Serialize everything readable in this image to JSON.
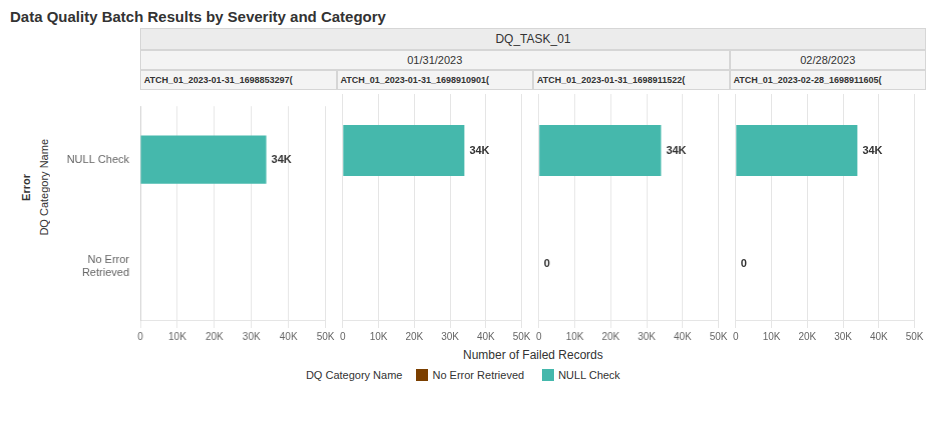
{
  "title": "Data Quality Batch Results by Severity and Category",
  "subtitle": "DQ_TASK_01",
  "annotations": [
    "Error"
  ],
  "ylabel": "DQ Category Name",
  "xlabel": "Number of Failed Records",
  "legend": "bottom",
  "chart_data": [
    {
      "type": "bar",
      "orientation": "horizontal",
      "title": "ATCH_01_2023-01-31_1698853297(",
      "subtitle": "01/31/2023",
      "categories": [
        "NULL Check",
        "No Error\nRetrieved"
      ],
      "series": [
        {
          "name": "No Error Retrieved",
          "color": "#7B3F00",
          "values": [
            null,
            null
          ]
        },
        {
          "name": "NULL Check",
          "color": "#45b8ac",
          "values": [
            34000,
            null
          ],
          "value_labels": [
            "34K",
            null
          ]
        }
      ],
      "xlim": [
        0,
        50000
      ],
      "xticks": [
        0,
        {
          "value": 10000,
          "label": "10K"
        },
        {
          "value": 20000,
          "label": "20K"
        },
        {
          "value": 30000,
          "label": "30K"
        },
        {
          "value": 40000,
          "label": "40K"
        },
        {
          "value": 50000,
          "label": "50K"
        }
      ],
      "grid": true,
      "data_labels": true
    },
    {
      "type": "bar",
      "orientation": "horizontal",
      "title": "ATCH_01_2023-01-31_1698910901(",
      "subtitle": "01/31/2023",
      "categories": [
        "NULL Check",
        "No Error\nRetrieved"
      ],
      "series": [
        {
          "name": "No Error Retrieved",
          "color": "#7B3F00",
          "values": [
            null,
            null
          ]
        },
        {
          "name": "NULL Check",
          "color": "#45b8ac",
          "values": [
            34000,
            null
          ],
          "value_labels": [
            "34K",
            null
          ]
        }
      ],
      "xlim": [
        0,
        50000
      ],
      "xticks": [
        0,
        {
          "value": 10000,
          "label": "10K"
        },
        {
          "value": 20000,
          "label": "20K"
        },
        {
          "value": 30000,
          "label": "30K"
        },
        {
          "value": 40000,
          "label": "40K"
        },
        {
          "value": 50000,
          "label": "50K"
        }
      ],
      "grid": true,
      "data_labels": true,
      "tick_labels": "x"
    },
    {
      "type": "bar",
      "orientation": "horizontal",
      "title": "ATCH_01_2023-01-31_1698911522(",
      "subtitle": "01/31/2023",
      "categories": [
        "NULL Check",
        "No Error\nRetrieved"
      ],
      "series": [
        {
          "name": "No Error Retrieved",
          "color": "#7B3F00",
          "values": [
            null,
            0
          ]
        },
        {
          "name": "NULL Check",
          "color": "#45b8ac",
          "values": [
            34000,
            null
          ],
          "value_labels": [
            "34K",
            null
          ]
        }
      ],
      "xlim": [
        0,
        50000
      ],
      "xticks": [
        0,
        {
          "value": 10000,
          "label": "10K"
        },
        {
          "value": 20000,
          "label": "20K"
        },
        {
          "value": 30000,
          "label": "30K"
        },
        {
          "value": 40000,
          "label": "40K"
        },
        {
          "value": 50000,
          "label": "50K"
        }
      ],
      "grid": true,
      "data_labels": true,
      "tick_labels": "x"
    },
    {
      "type": "bar",
      "orientation": "horizontal",
      "title": "ATCH_01_2023-02-28_1698911605(",
      "subtitle": "02/28/2023",
      "categories": [
        "NULL Check",
        "No Error\nRetrieved"
      ],
      "series": [
        {
          "name": "No Error Retrieved",
          "color": "#7B3F00",
          "values": [
            null,
            0
          ]
        },
        {
          "name": "NULL Check",
          "color": "#45b8ac",
          "values": [
            34000,
            null
          ],
          "value_labels": [
            "34K",
            null
          ]
        }
      ],
      "xlim": [
        0,
        50000
      ],
      "xticks": [
        0,
        {
          "value": 10000,
          "label": "10K"
        },
        {
          "value": 20000,
          "label": "20K"
        },
        {
          "value": 30000,
          "label": "30K"
        },
        {
          "value": 40000,
          "label": "40K"
        },
        {
          "value": 50000,
          "label": "50K"
        }
      ],
      "grid": true,
      "data_labels": true,
      "tick_labels": "x"
    }
  ]
}
